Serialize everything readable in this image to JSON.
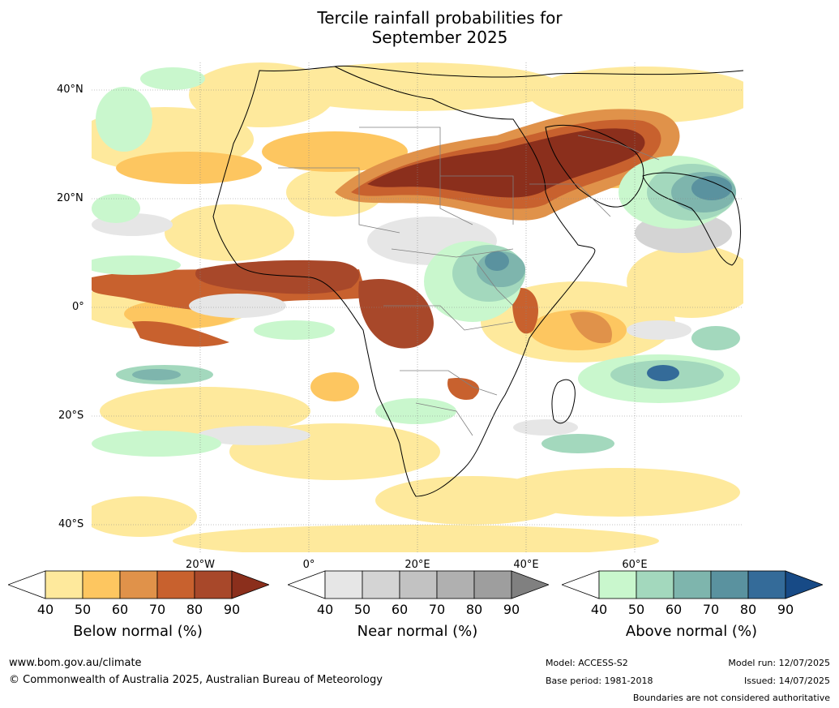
{
  "title_line1": "Tercile rainfall probabilities for",
  "title_line2": "September 2025",
  "lat_labels": [
    "40°N",
    "20°N",
    "0°",
    "20°S",
    "40°S"
  ],
  "lon_labels": [
    "20°W",
    "0°",
    "20°E",
    "40°E",
    "60°E"
  ],
  "legends": [
    {
      "title": "Below normal (%)",
      "ticks": [
        "40",
        "50",
        "60",
        "70",
        "80",
        "90"
      ],
      "colors": [
        "#ffffff",
        "#fee99c",
        "#fdc660",
        "#e0924a",
        "#c8612e",
        "#a8482a",
        "#8b2f1c"
      ]
    },
    {
      "title": "Near normal (%)",
      "ticks": [
        "40",
        "50",
        "60",
        "70",
        "80",
        "90"
      ],
      "colors": [
        "#ffffff",
        "#e6e6e6",
        "#d4d4d4",
        "#c2c2c2",
        "#b0b0b0",
        "#9e9e9e",
        "#808080"
      ]
    },
    {
      "title": "Above normal (%)",
      "ticks": [
        "40",
        "50",
        "60",
        "70",
        "80",
        "90"
      ],
      "colors": [
        "#ffffff",
        "#c9f7cd",
        "#a3d8bd",
        "#7eb5ad",
        "#5a929f",
        "#346b99",
        "#174a86"
      ]
    }
  ],
  "footer": {
    "website": "www.bom.gov.au/climate",
    "copyright": "© Commonwealth of Australia 2025, Australian Bureau of Meteorology",
    "model": "Model: ACCESS-S2",
    "base_period": "Base period: 1981-2018",
    "model_run": "Model run: 12/07/2025",
    "issued": "Issued: 14/07/2025",
    "disclaimer": "Boundaries are not considered authoritative"
  }
}
